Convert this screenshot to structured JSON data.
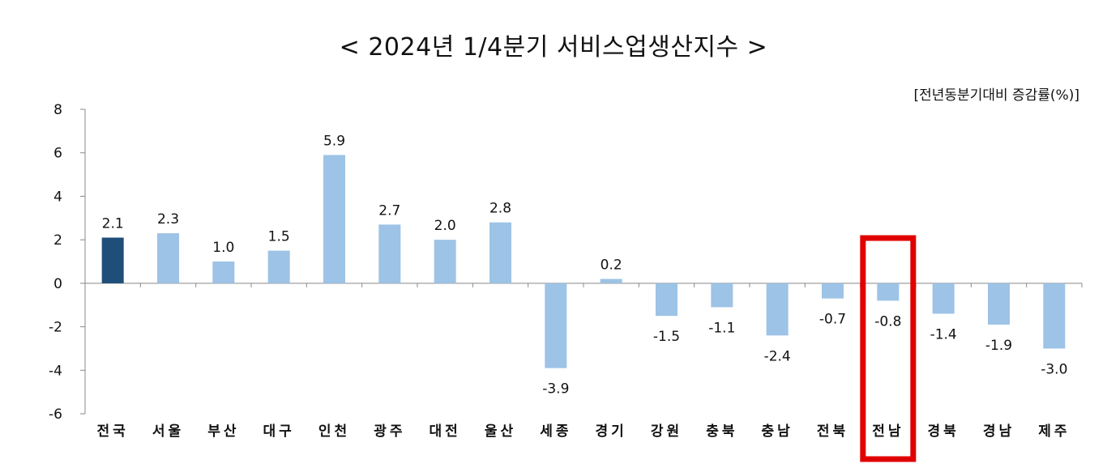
{
  "chart_data": {
    "type": "bar",
    "title": "< 2024년 1/4분기 서비스업생산지수 >",
    "unit_label": "[전년동분기대비 증감률(%)]",
    "categories": [
      "전국",
      "서울",
      "부산",
      "대구",
      "인천",
      "광주",
      "대전",
      "울산",
      "세종",
      "경기",
      "강원",
      "충북",
      "충남",
      "전북",
      "전남",
      "경북",
      "경남",
      "제주"
    ],
    "values": [
      2.1,
      2.3,
      1.0,
      1.5,
      5.9,
      2.7,
      2.0,
      2.8,
      -3.9,
      0.2,
      -1.5,
      -1.1,
      -2.4,
      -0.7,
      -0.8,
      -1.4,
      -1.9,
      -3.0
    ],
    "value_labels": [
      "2.1",
      "2.3",
      "1.0",
      "1.5",
      "5.9",
      "2.7",
      "2.0",
      "2.8",
      "-3.9",
      "0.2",
      "-1.5",
      "-1.1",
      "-2.4",
      "-0.7",
      "-0.8",
      "-1.4",
      "-1.9",
      "-3.0"
    ],
    "ylim": [
      -6,
      8
    ],
    "yticks": [
      8,
      6,
      4,
      2,
      0,
      -2,
      -4,
      -6
    ],
    "highlight_category": "전국",
    "boxed_category": "전남",
    "colors": {
      "highlight": "#1f4e79",
      "bar": "#9dc3e6",
      "box": "#e00000",
      "axis": "#888888"
    },
    "grid": false
  }
}
